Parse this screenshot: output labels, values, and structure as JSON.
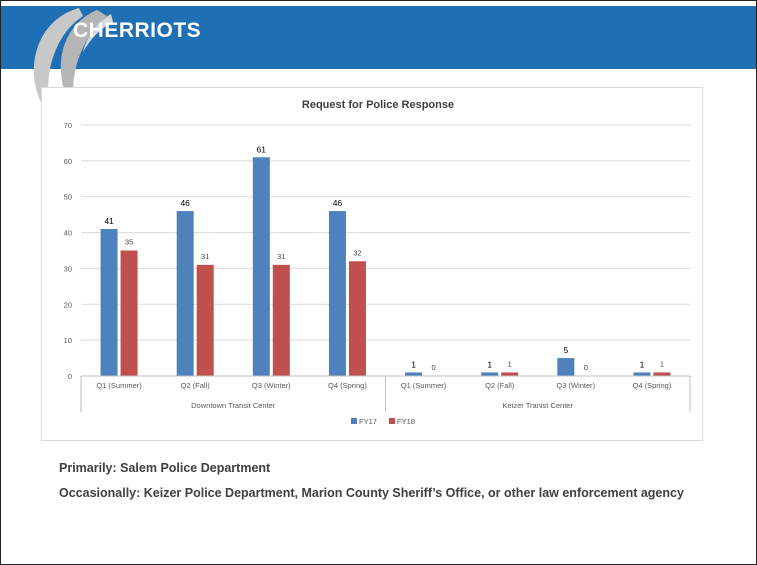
{
  "brand": {
    "name": "CHERRIOTS"
  },
  "colors": {
    "header": "#1f6fb5",
    "fy17": "#4f81bd",
    "fy18": "#c0504d"
  },
  "chart_data": {
    "type": "bar",
    "title": "Request for Police Response",
    "xlabel": "",
    "ylabel": "",
    "ylim": [
      0,
      70
    ],
    "yticks": [
      0,
      10,
      20,
      30,
      40,
      50,
      60,
      70
    ],
    "grid": true,
    "legend_position": "bottom",
    "groups": [
      {
        "label": "Downtown Transit Center",
        "categories": [
          "Q1 (Summer)",
          "Q2 (Fall)",
          "Q3 (Winter)",
          "Q4 (Spring)"
        ]
      },
      {
        "label": "Keizer Tranist Center",
        "categories": [
          "Q1 (Summer)",
          "Q2 (Fall)",
          "Q3 (Winter)",
          "Q4 (Spring)"
        ]
      }
    ],
    "categories": [
      "Q1 (Summer)",
      "Q2 (Fall)",
      "Q3 (Winter)",
      "Q4 (Spring)",
      "Q1 (Summer)",
      "Q2 (Fall)",
      "Q3 (Winter)",
      "Q4 (Spring)"
    ],
    "series": [
      {
        "name": "FY17",
        "color": "#4f81bd",
        "values": [
          41,
          46,
          61,
          46,
          1,
          1,
          5,
          1
        ]
      },
      {
        "name": "FY18",
        "color": "#c0504d",
        "values": [
          35,
          31,
          31,
          32,
          0,
          1,
          0,
          1
        ]
      }
    ]
  },
  "notes": {
    "primary": "Primarily: Salem Police Department",
    "occasional": "Occasionally: Keizer Police Department, Marion County Sheriff’s Office, or other law enforcement agency"
  }
}
